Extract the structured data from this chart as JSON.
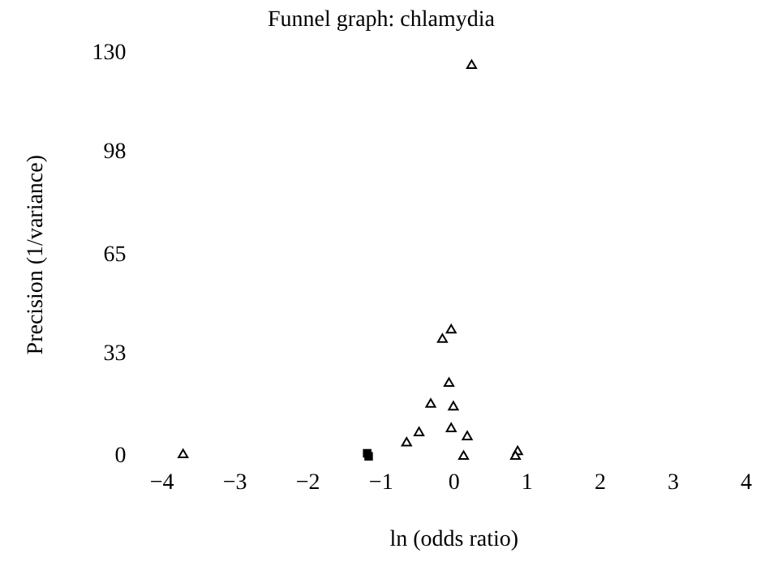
{
  "chart_data": {
    "type": "scatter",
    "title": "Funnel graph: chlamydia",
    "xlabel": "ln (odds ratio)",
    "ylabel": "Precision (1/variance)",
    "xlim": [
      -4,
      4
    ],
    "xticks": [
      -4,
      -3,
      -2,
      -1,
      0,
      1,
      2,
      3,
      4
    ],
    "ylim": [
      0,
      130
    ],
    "yticks": [
      0,
      33,
      65,
      98,
      130
    ],
    "grid": false,
    "legend": false,
    "series": [
      {
        "color": "#000000",
        "marker": "triangle",
        "x": [
          -3.71,
          0.24,
          -0.04,
          -0.16,
          -0.07,
          -0.32,
          -0.01,
          -0.48,
          -0.04,
          -0.65,
          0.18,
          0.13,
          0.87,
          0.84
        ],
        "values": [
          0.5,
          126,
          40.7,
          37.7,
          23.5,
          16.8,
          15.9,
          7.6,
          8.9,
          4.3,
          6.3,
          0,
          1.5,
          0
        ]
      },
      {
        "color": "#000000",
        "marker": "square",
        "x": [
          -1.19,
          -1.17
        ],
        "values": [
          1,
          0
        ]
      }
    ]
  }
}
